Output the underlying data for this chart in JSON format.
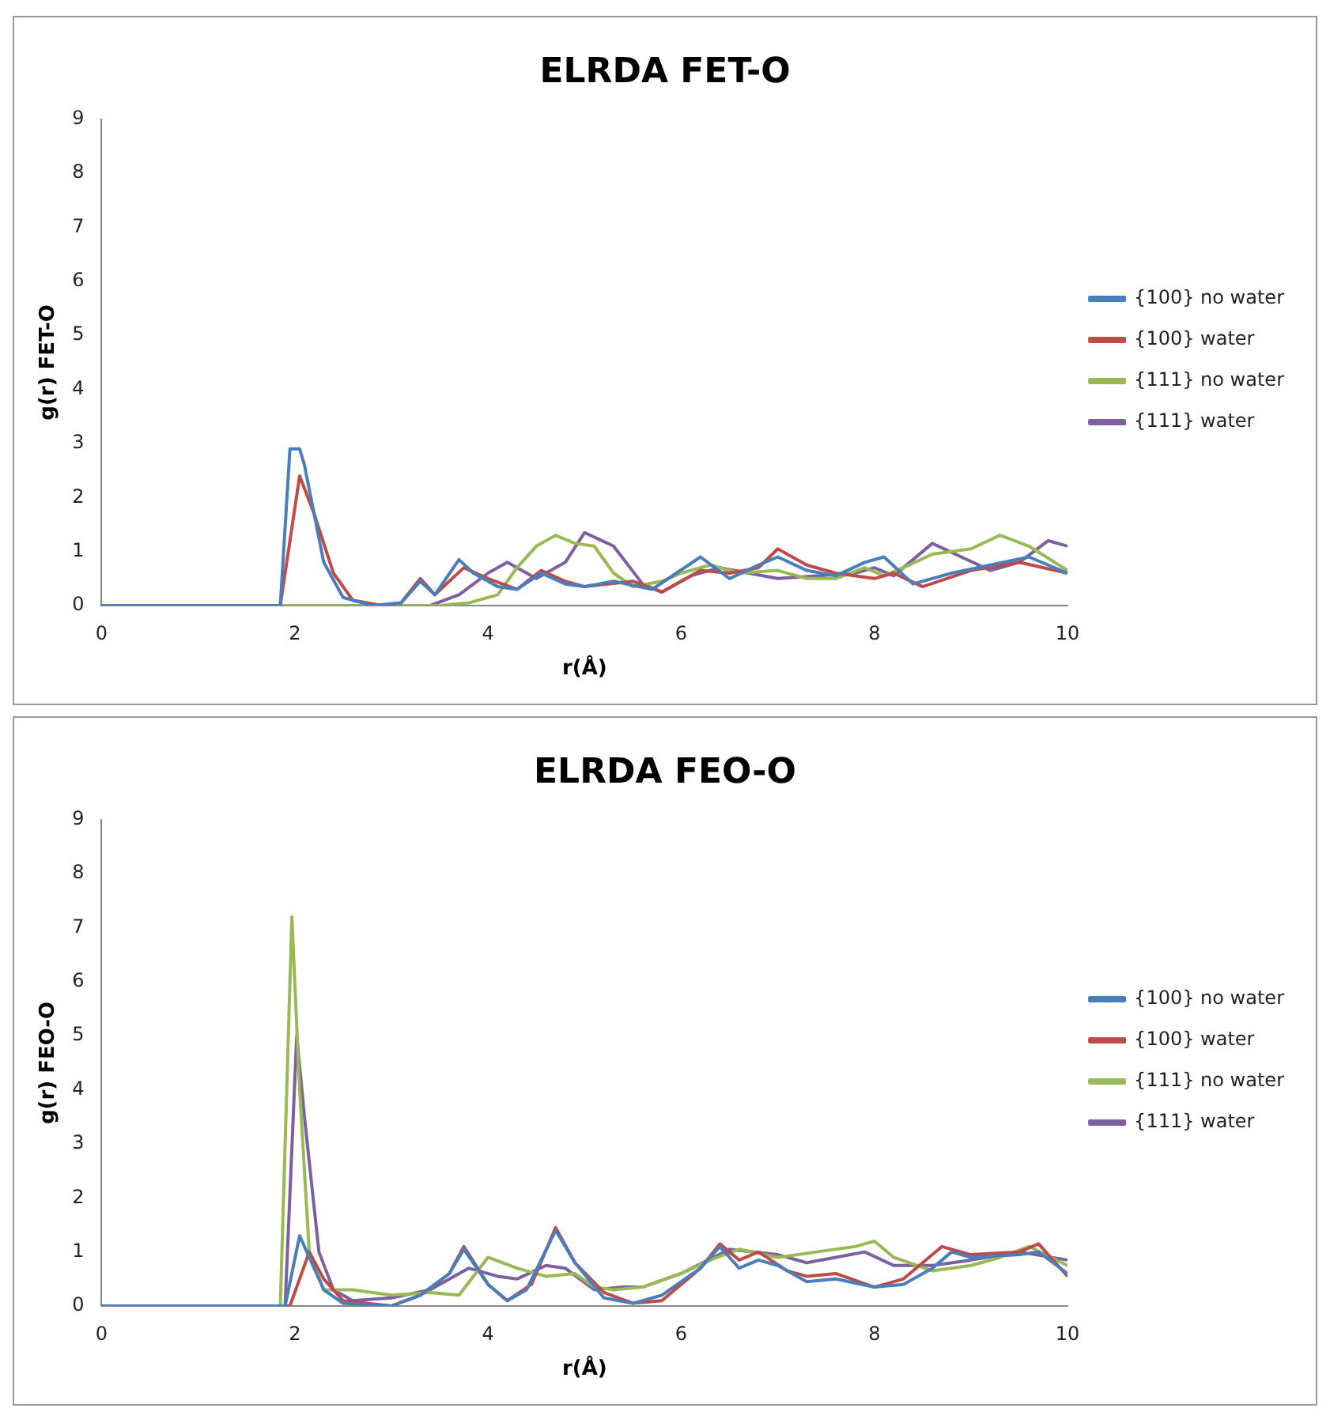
{
  "chart_data": [
    {
      "type": "line",
      "title": "ELRDA FET-O",
      "xlabel": "r(Å)",
      "ylabel": "g(r) FET-O",
      "xlim": [
        0,
        10
      ],
      "xticks": [
        0,
        2,
        4,
        6,
        8,
        10
      ],
      "ylim": [
        0,
        9
      ],
      "yticks": [
        0,
        1,
        2,
        3,
        4,
        5,
        6,
        7,
        8,
        9
      ],
      "grid": false,
      "legend": "right",
      "marker": "none",
      "line_style": "solid",
      "series": [
        {
          "name": "{100} no water",
          "color": "#4a7ebb",
          "x": [
            0,
            1.85,
            1.95,
            2.05,
            2.1,
            2.3,
            2.5,
            2.8,
            3.1,
            3.3,
            3.45,
            3.7,
            3.85,
            4.1,
            4.3,
            4.55,
            4.8,
            5.0,
            5.3,
            5.7,
            6.2,
            6.5,
            6.8,
            7.0,
            7.3,
            7.6,
            7.9,
            8.1,
            8.4,
            8.8,
            9.2,
            9.6,
            10
          ],
          "values": [
            0,
            0,
            2.9,
            2.9,
            2.6,
            0.8,
            0.15,
            0,
            0.05,
            0.45,
            0.2,
            0.85,
            0.6,
            0.35,
            0.3,
            0.6,
            0.4,
            0.35,
            0.45,
            0.3,
            0.9,
            0.5,
            0.75,
            0.9,
            0.65,
            0.55,
            0.8,
            0.9,
            0.4,
            0.6,
            0.75,
            0.9,
            0.6
          ]
        },
        {
          "name": "{100} water",
          "color": "#be4b48",
          "x": [
            0,
            1.85,
            2.05,
            2.2,
            2.4,
            2.6,
            2.9,
            3.1,
            3.3,
            3.45,
            3.75,
            4.0,
            4.3,
            4.55,
            4.8,
            5.0,
            5.5,
            5.8,
            6.2,
            6.5,
            6.8,
            7.0,
            7.3,
            7.6,
            8.0,
            8.2,
            8.5,
            9.0,
            9.5,
            10
          ],
          "values": [
            0,
            0,
            2.4,
            1.7,
            0.6,
            0.1,
            0,
            0.05,
            0.5,
            0.2,
            0.7,
            0.5,
            0.3,
            0.65,
            0.45,
            0.35,
            0.45,
            0.25,
            0.65,
            0.6,
            0.7,
            1.05,
            0.75,
            0.6,
            0.5,
            0.6,
            0.35,
            0.65,
            0.8,
            0.6
          ]
        },
        {
          "name": "{111} no water",
          "color": "#98b954",
          "x": [
            0,
            3.5,
            3.8,
            4.1,
            4.3,
            4.5,
            4.7,
            4.9,
            5.1,
            5.3,
            5.5,
            5.8,
            6.0,
            6.3,
            6.6,
            7.0,
            7.3,
            7.6,
            7.9,
            8.1,
            8.3,
            8.6,
            9.0,
            9.3,
            9.6,
            10
          ],
          "values": [
            0,
            0,
            0.05,
            0.2,
            0.7,
            1.1,
            1.3,
            1.15,
            1.1,
            0.6,
            0.35,
            0.45,
            0.6,
            0.75,
            0.6,
            0.65,
            0.5,
            0.5,
            0.7,
            0.55,
            0.7,
            0.95,
            1.05,
            1.3,
            1.1,
            0.65
          ]
        },
        {
          "name": "{111} water",
          "color": "#7d60a0",
          "x": [
            0,
            3.4,
            3.7,
            4.0,
            4.2,
            4.5,
            4.8,
            5.0,
            5.3,
            5.6,
            5.8,
            6.1,
            6.4,
            6.7,
            7.0,
            7.4,
            7.8,
            8.0,
            8.2,
            8.6,
            8.9,
            9.2,
            9.5,
            9.8,
            10
          ],
          "values": [
            0,
            0,
            0.2,
            0.6,
            0.8,
            0.5,
            0.8,
            1.35,
            1.1,
            0.4,
            0.25,
            0.55,
            0.7,
            0.6,
            0.5,
            0.55,
            0.6,
            0.7,
            0.55,
            1.15,
            0.9,
            0.65,
            0.8,
            1.2,
            1.1
          ]
        }
      ]
    },
    {
      "type": "line",
      "title": "ELRDA FEO-O",
      "xlabel": "r(Å)",
      "ylabel": "g(r) FEO-O",
      "xlim": [
        0,
        10
      ],
      "xticks": [
        0,
        2,
        4,
        6,
        8,
        10
      ],
      "ylim": [
        0,
        9
      ],
      "yticks": [
        0,
        1,
        2,
        3,
        4,
        5,
        6,
        7,
        8,
        9
      ],
      "grid": false,
      "legend": "right",
      "marker": "none",
      "line_style": "solid",
      "series": [
        {
          "name": "{100} no water",
          "color": "#4a7ebb",
          "x": [
            0,
            1.9,
            2.05,
            2.15,
            2.3,
            2.5,
            3.0,
            3.3,
            3.6,
            3.75,
            4.0,
            4.2,
            4.4,
            4.7,
            4.9,
            5.2,
            5.5,
            5.8,
            6.2,
            6.4,
            6.6,
            6.8,
            7.0,
            7.3,
            7.6,
            8.0,
            8.3,
            8.6,
            8.8,
            9.0,
            9.5,
            9.7,
            10
          ],
          "values": [
            0,
            0,
            1.3,
            0.9,
            0.3,
            0.05,
            0,
            0.2,
            0.6,
            1.05,
            0.4,
            0.1,
            0.3,
            1.4,
            0.8,
            0.15,
            0.05,
            0.2,
            0.7,
            1.1,
            0.7,
            0.85,
            0.75,
            0.45,
            0.5,
            0.35,
            0.4,
            0.7,
            1.0,
            0.9,
            0.95,
            1.0,
            0.6
          ]
        },
        {
          "name": "{100} water",
          "color": "#be4b48",
          "x": [
            0,
            1.95,
            2.15,
            2.3,
            2.5,
            3.0,
            3.3,
            3.6,
            3.75,
            4.0,
            4.2,
            4.45,
            4.7,
            4.9,
            5.2,
            5.5,
            5.8,
            6.2,
            6.4,
            6.6,
            6.8,
            7.1,
            7.3,
            7.6,
            8.0,
            8.3,
            8.7,
            9.0,
            9.5,
            9.7,
            10
          ],
          "values": [
            0,
            0,
            1.0,
            0.5,
            0.1,
            0,
            0.2,
            0.6,
            1.1,
            0.4,
            0.1,
            0.4,
            1.45,
            0.8,
            0.25,
            0.05,
            0.1,
            0.7,
            1.15,
            0.85,
            1.0,
            0.65,
            0.55,
            0.6,
            0.35,
            0.5,
            1.1,
            0.95,
            1.0,
            1.15,
            0.55
          ]
        },
        {
          "name": "{111} no water",
          "color": "#98b954",
          "x": [
            0,
            1.85,
            1.97,
            2.05,
            2.15,
            2.3,
            2.6,
            3.0,
            3.4,
            3.7,
            4.0,
            4.3,
            4.6,
            4.9,
            5.1,
            5.3,
            5.6,
            6.0,
            6.3,
            6.6,
            7.0,
            7.4,
            7.8,
            8.0,
            8.2,
            8.6,
            9.0,
            9.3,
            9.6,
            10
          ],
          "values": [
            0,
            0,
            7.2,
            4.0,
            1.0,
            0.3,
            0.3,
            0.2,
            0.25,
            0.2,
            0.9,
            0.7,
            0.55,
            0.6,
            0.35,
            0.3,
            0.35,
            0.6,
            0.85,
            1.05,
            0.9,
            1.0,
            1.1,
            1.2,
            0.9,
            0.65,
            0.75,
            0.9,
            1.1,
            0.75
          ]
        },
        {
          "name": "{111} water",
          "color": "#7d60a0",
          "x": [
            0,
            1.9,
            2.02,
            2.1,
            2.25,
            2.4,
            2.6,
            3.0,
            3.4,
            3.8,
            4.1,
            4.3,
            4.6,
            4.8,
            5.1,
            5.4,
            5.6,
            6.0,
            6.5,
            7.0,
            7.3,
            7.6,
            7.9,
            8.2,
            8.6,
            9.0,
            9.5,
            10
          ],
          "values": [
            0,
            0,
            5.0,
            3.5,
            1.0,
            0.3,
            0.1,
            0.15,
            0.3,
            0.7,
            0.55,
            0.5,
            0.75,
            0.7,
            0.3,
            0.35,
            0.35,
            0.6,
            1.05,
            0.95,
            0.8,
            0.9,
            1.0,
            0.75,
            0.75,
            0.85,
            1.0,
            0.85
          ]
        }
      ]
    }
  ]
}
